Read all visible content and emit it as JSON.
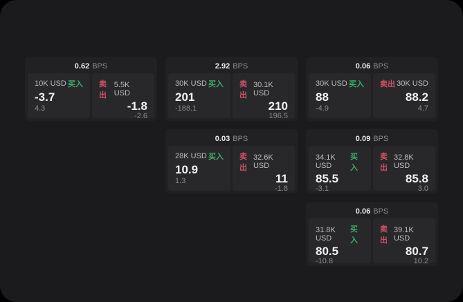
{
  "page": {
    "background_color": "#000000",
    "surface_color": "#1b1b1d"
  },
  "labels": {
    "bps_unit": "BPS",
    "buy": "买入",
    "sell": "卖出"
  },
  "colors": {
    "buy": "#3cab67",
    "sell": "#cf5066"
  },
  "cards": [
    {
      "row": 1,
      "col": 1,
      "bps": "0.62",
      "buy": {
        "amount": "10K USD",
        "price": "-3.7",
        "delta": "4.3"
      },
      "sell": {
        "amount": "5.5K USD",
        "price": "-1.8",
        "delta": "-2.6"
      }
    },
    {
      "row": 1,
      "col": 2,
      "bps": "2.92",
      "buy": {
        "amount": "30K USD",
        "price": "201",
        "delta": "-188.1"
      },
      "sell": {
        "amount": "30.1K USD",
        "price": "210",
        "delta": "196.5"
      }
    },
    {
      "row": 1,
      "col": 3,
      "bps": "0.06",
      "buy": {
        "amount": "30K USD",
        "price": "88",
        "delta": "-4.9"
      },
      "sell": {
        "amount": "30K USD",
        "price": "88.2",
        "delta": "4.7"
      }
    },
    {
      "row": 2,
      "col": 2,
      "bps": "0.03",
      "buy": {
        "amount": "28K USD",
        "price": "10.9",
        "delta": "1.3"
      },
      "sell": {
        "amount": "32.6K USD",
        "price": "11",
        "delta": "-1.8"
      }
    },
    {
      "row": 2,
      "col": 3,
      "bps": "0.09",
      "buy": {
        "amount": "34.1K USD",
        "price": "85.5",
        "delta": "-3.1"
      },
      "sell": {
        "amount": "32.8K USD",
        "price": "85.8",
        "delta": "3.0"
      }
    },
    {
      "row": 3,
      "col": 3,
      "bps": "0.06",
      "buy": {
        "amount": "31.8K USD",
        "price": "80.5",
        "delta": "-10.8"
      },
      "sell": {
        "amount": "39.1K USD",
        "price": "80.7",
        "delta": "10.2"
      }
    }
  ]
}
